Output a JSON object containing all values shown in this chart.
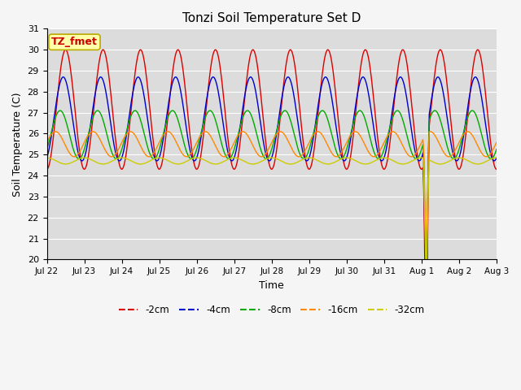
{
  "title": "Tonzi Soil Temperature Set D",
  "xlabel": "Time",
  "ylabel": "Soil Temperature (C)",
  "ylim": [
    20.0,
    31.0
  ],
  "yticks": [
    20.0,
    21.0,
    22.0,
    23.0,
    24.0,
    25.0,
    26.0,
    27.0,
    28.0,
    29.0,
    30.0,
    31.0
  ],
  "series": [
    "-2cm",
    "-4cm",
    "-8cm",
    "-16cm",
    "-32cm"
  ],
  "colors": [
    "#dd0000",
    "#0000cc",
    "#00aa00",
    "#ff8800",
    "#cccc00"
  ],
  "background_color": "#dcdcdc",
  "fig_background": "#f5f5f5",
  "annotation_text": "TZ_fmet",
  "annotation_bg": "#ffffaa",
  "annotation_border": "#bbaa00",
  "tick_labels": [
    "Jul 22",
    "Jul 23",
    "Jul 24",
    "Jul 25",
    "Jul 26",
    "Jul 27",
    "Jul 28",
    "Jul 29",
    "Jul 30",
    "Jul 31",
    "Aug 1",
    "Aug 2",
    "Aug 3"
  ]
}
